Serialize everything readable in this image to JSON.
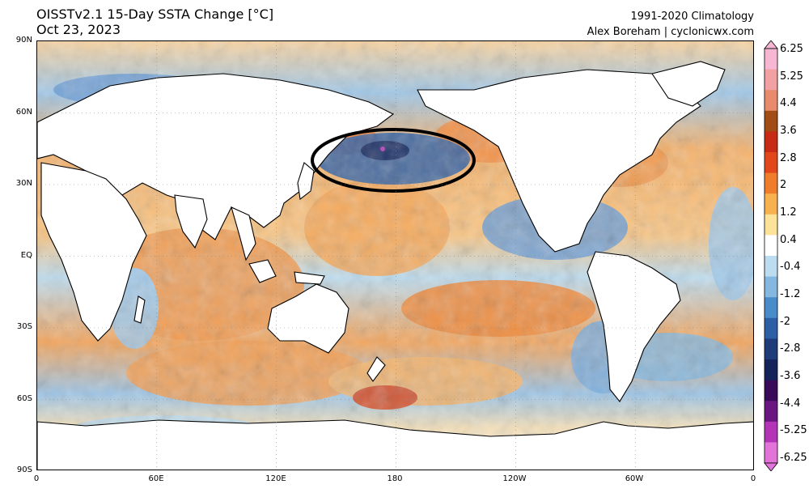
{
  "header": {
    "title": "OISSTv2.1 15-Day SSTA Change [°C]",
    "date": "Oct 23, 2023",
    "climatology": "1991-2020 Climatology",
    "credit": "Alex Boreham | cyclonicwx.com"
  },
  "map": {
    "lat_labels": [
      "90N",
      "60N",
      "30N",
      "EQ",
      "30S",
      "60S",
      "90S"
    ],
    "lon_labels": [
      "0",
      "60E",
      "120E",
      "180",
      "120W",
      "60W",
      "0"
    ],
    "highlight": "ellipse around the North Pacific cooling region (~35N–50N, 145E–160W)"
  },
  "colorbar": {
    "labels": [
      "6.25",
      "5.25",
      "4.4",
      "3.6",
      "2.8",
      "2",
      "1.2",
      "0.4",
      "-0.4",
      "-1.2",
      "-2",
      "-2.8",
      "-3.6",
      "-4.4",
      "-5.25",
      "-6.25"
    ],
    "colors": [
      "#f7b7d2",
      "#f1a1a1",
      "#e98a6c",
      "#a24d16",
      "#c72a15",
      "#e2471c",
      "#f07d2c",
      "#f8b14f",
      "#fde39a",
      "#ffffff",
      "#bcdcf0",
      "#84b8e0",
      "#4a8bca",
      "#2d5fa6",
      "#1e3b7a",
      "#14245a",
      "#3a0a5a",
      "#6a1680",
      "#b334b6",
      "#e273d9"
    ]
  }
}
